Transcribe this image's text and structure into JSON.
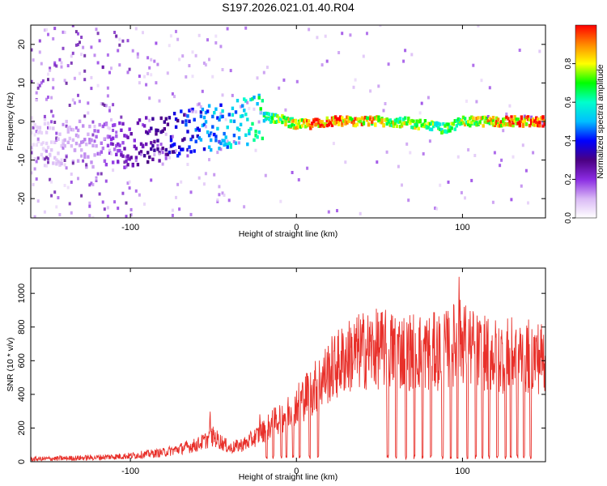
{
  "title": "S197.2026.021.01.40.R04",
  "chart_data": [
    {
      "type": "heatmap",
      "name": "spectrogram",
      "xlabel": "Height of straight line (km)",
      "ylabel": "Frequency (Hz)",
      "xlim": [
        -160,
        150
      ],
      "ylim": [
        -25,
        25
      ],
      "xticks": [
        -100,
        0,
        100
      ],
      "yticks": [
        -20,
        -10,
        0,
        10,
        20
      ],
      "colorbar": {
        "label": "Normalized spectral amplitude",
        "range": [
          0.0,
          1.0
        ],
        "ticks": [
          0.0,
          0.2,
          0.4,
          0.6,
          0.8
        ],
        "tick_labels": [
          "0.0",
          "0.2",
          "0.4",
          "0.6",
          "0.8"
        ],
        "colormap": [
          "#ffffff",
          "#d9b8f5",
          "#8a2be2",
          "#4b0082",
          "#0000ff",
          "#00bfff",
          "#00ffcc",
          "#00ff00",
          "#ffff00",
          "#ff8800",
          "#ff0000"
        ]
      },
      "ridge": {
        "description_points_x": [
          -160,
          -120,
          -100,
          -80,
          -60,
          -40,
          -20,
          -10,
          0,
          20,
          40,
          60,
          80,
          90,
          100,
          120,
          150
        ],
        "frequency": [
          -5,
          -6,
          -6,
          -4,
          -2,
          -1,
          1,
          1,
          -1,
          0,
          0,
          0,
          -1,
          -2,
          0,
          0,
          0
        ],
        "peak_amplitude": [
          0.05,
          0.15,
          0.25,
          0.35,
          0.45,
          0.55,
          0.65,
          0.75,
          0.85,
          1.0,
          0.9,
          0.8,
          0.75,
          0.7,
          0.8,
          0.9,
          1.0
        ]
      }
    },
    {
      "type": "line",
      "name": "snr",
      "xlabel": "Height of straight line (km)",
      "ylabel": "SNR (10 * v/v)",
      "xlim": [
        -160,
        150
      ],
      "ylim": [
        0,
        1150
      ],
      "xticks": [
        -100,
        0,
        100
      ],
      "yticks": [
        0,
        200,
        400,
        600,
        800,
        1000
      ],
      "color": "#e8302a",
      "trend": {
        "x": [
          -160,
          -140,
          -120,
          -100,
          -80,
          -60,
          -50,
          -40,
          -30,
          -20,
          -10,
          0,
          10,
          20,
          30,
          40,
          50,
          60,
          70,
          80,
          90,
          95,
          100,
          110,
          120,
          130,
          140,
          150
        ],
        "y": [
          15,
          20,
          25,
          35,
          55,
          100,
          150,
          80,
          110,
          180,
          260,
          340,
          430,
          540,
          620,
          660,
          670,
          660,
          655,
          650,
          660,
          700,
          720,
          640,
          630,
          630,
          625,
          620
        ]
      },
      "spikes": [
        {
          "x": -52,
          "y": 320
        },
        {
          "x": -22,
          "y": 300
        },
        {
          "x": -10,
          "y": 370
        },
        {
          "x": 4,
          "y": 440
        },
        {
          "x": 92,
          "y": 870
        },
        {
          "x": 98,
          "y": 1150
        },
        {
          "x": 101,
          "y": 1000
        }
      ],
      "dropouts_x": [
        -18,
        -14,
        -9,
        -6,
        -2,
        2,
        8,
        13,
        55,
        60,
        66,
        71,
        76,
        81,
        88,
        93,
        97,
        103,
        108,
        112,
        116,
        121,
        126,
        129,
        133,
        137,
        141
      ]
    }
  ]
}
